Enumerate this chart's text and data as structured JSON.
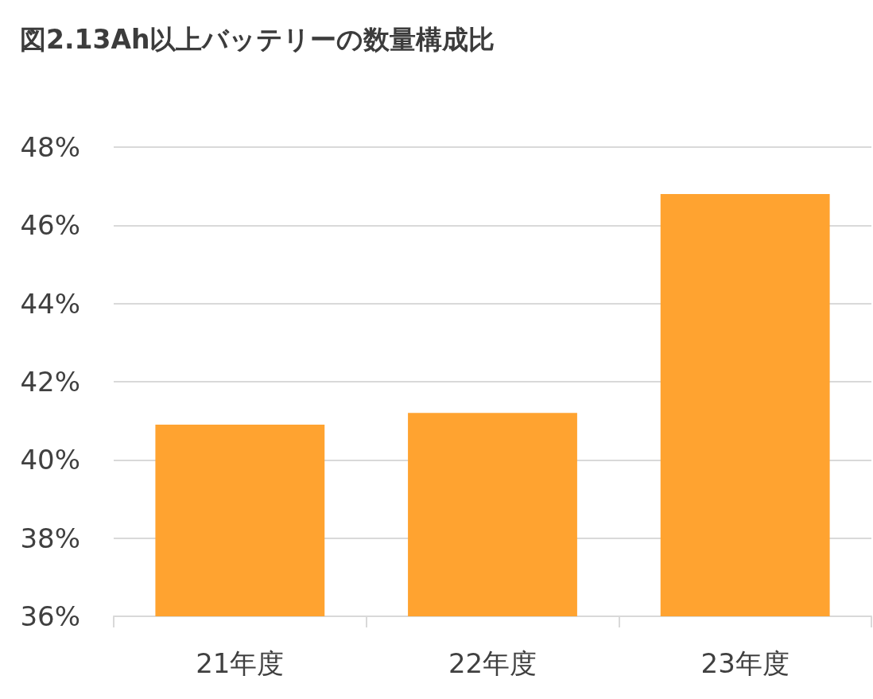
{
  "chart_data": {
    "type": "bar",
    "title": "図2.13Ah以上バッテリーの数量構成比",
    "categories": [
      "21年度",
      "22年度",
      "23年度"
    ],
    "values": [
      40.9,
      41.2,
      46.8
    ],
    "color": "#ffa330",
    "ylim": [
      36,
      48
    ],
    "yticks": [
      {
        "value": 36,
        "label": "36%"
      },
      {
        "value": 38,
        "label": "38%"
      },
      {
        "value": 40,
        "label": "40%"
      },
      {
        "value": 42,
        "label": "42%"
      },
      {
        "value": 44,
        "label": "44%"
      },
      {
        "value": 46,
        "label": "46%"
      },
      {
        "value": 48,
        "label": "48%"
      }
    ],
    "grid": "y"
  }
}
